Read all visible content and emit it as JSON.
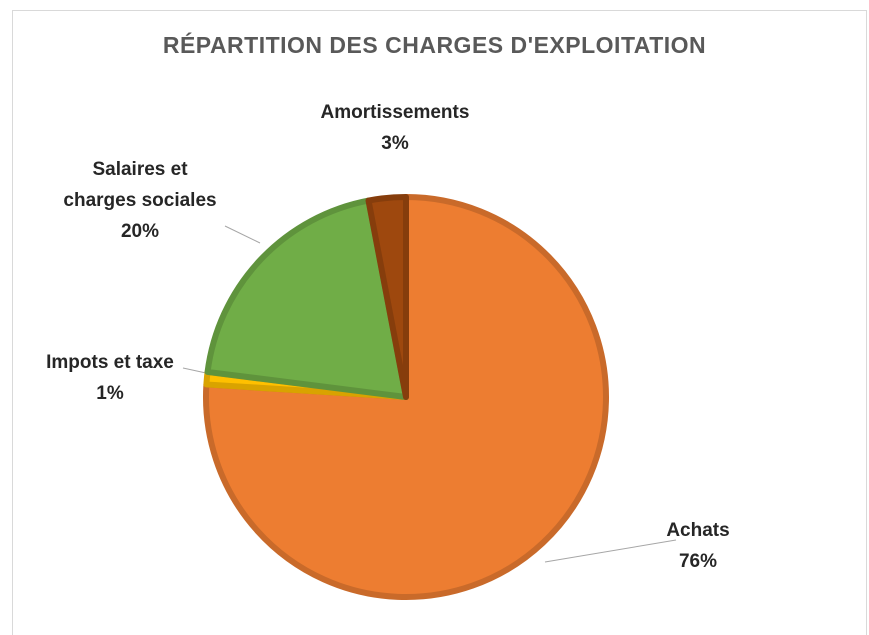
{
  "chart_data": {
    "type": "pie",
    "title": "RÉPARTITION DES CHARGES D'EXPLOITATION",
    "categories": [
      "Achats",
      "Impots et taxe",
      "Salaires et charges sociales",
      "Amortissements"
    ],
    "values": [
      76,
      1,
      20,
      3
    ],
    "value_labels": [
      "76%",
      "1%",
      "20%",
      "3%"
    ],
    "colors": [
      "#ED7D31",
      "#FFC000",
      "#70AD47",
      "#9E480E"
    ]
  }
}
